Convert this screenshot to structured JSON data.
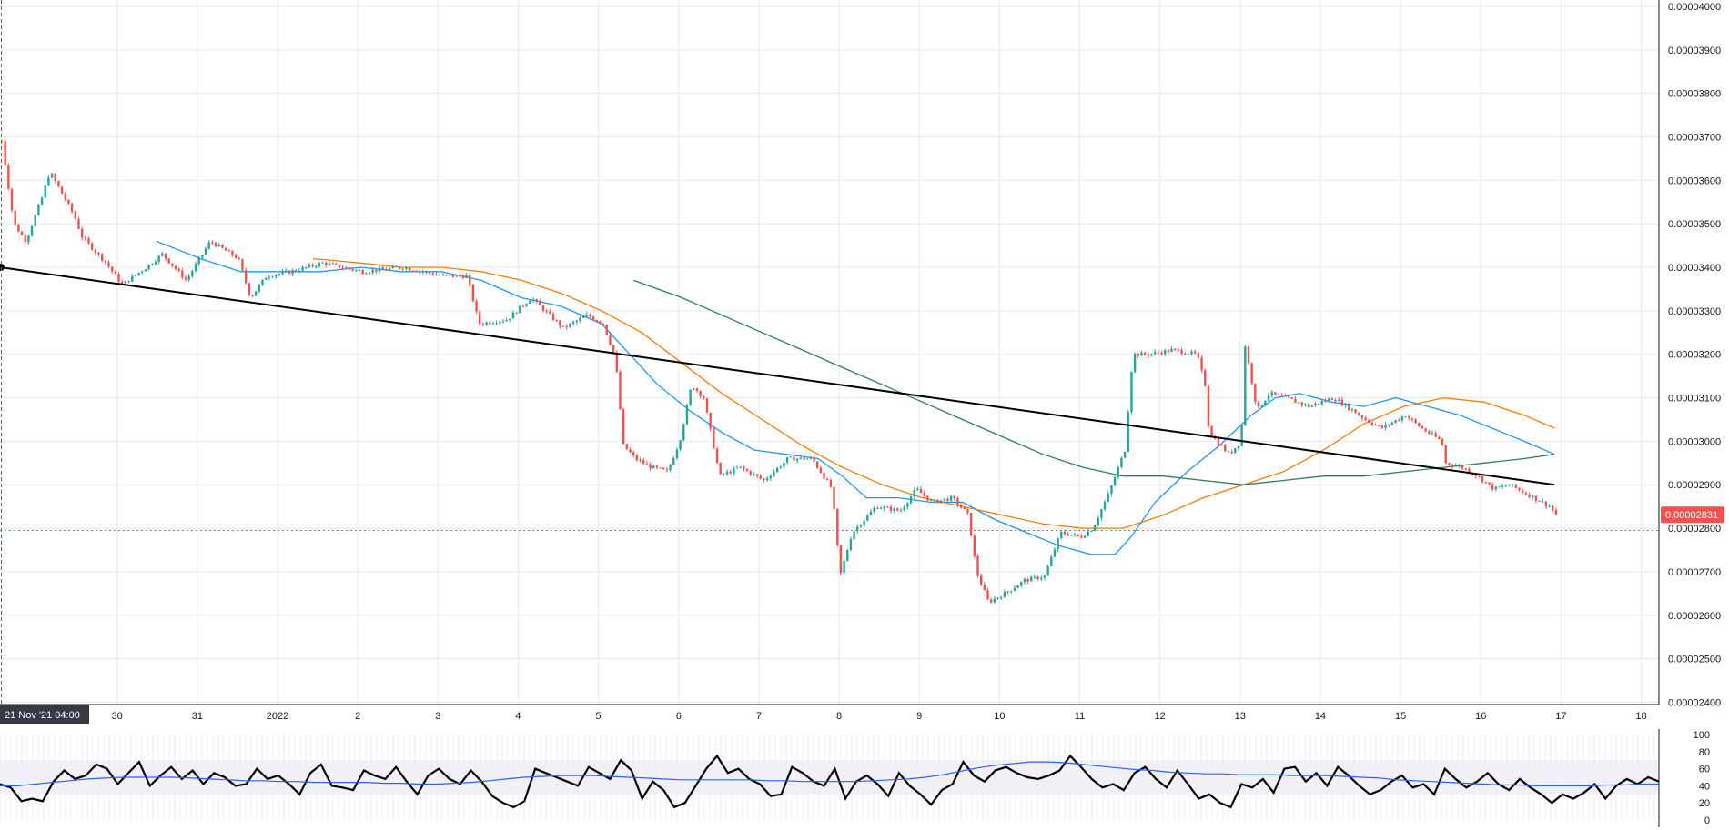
{
  "chart_data": {
    "type": "candlestick",
    "price_axis": {
      "range": [
        2.38e-05,
        4e-05
      ],
      "tick_labels": [
        "0.00004000",
        "0.00003900",
        "0.00003800",
        "0.00003700",
        "0.00003600",
        "0.00003500",
        "0.00003400",
        "0.00003300",
        "0.00003200",
        "0.00003100",
        "0.00003000",
        "0.00002900",
        "0.00002800",
        "0.00002700",
        "0.00002600",
        "0.00002500",
        "0.00002400"
      ]
    },
    "time_axis": {
      "tick_labels": [
        "30",
        "31",
        "2022",
        "2",
        "3",
        "4",
        "5",
        "6",
        "7",
        "8",
        "9",
        "10",
        "11",
        "12",
        "13",
        "14",
        "15",
        "16",
        "17",
        "18"
      ],
      "crosshair_label": "21 Nov '21   04:00"
    },
    "last_price": {
      "label": "0.00002831",
      "value": 2.831e-05
    },
    "horizontal_line": {
      "value": 2.795e-05,
      "style": "dotted",
      "color": "#ef5350"
    },
    "trendline": {
      "start": {
        "day": 0,
        "price": 3.4e-05
      },
      "end": {
        "day": 19.38,
        "price": 2.9e-05
      },
      "color": "#000000"
    },
    "candle_colors": {
      "up": "#26a69a",
      "down": "#ef5350"
    },
    "price_path": [
      [
        0.0,
        3.69e-05
      ],
      [
        0.15,
        3.5e-05
      ],
      [
        0.3,
        3.46e-05
      ],
      [
        0.5,
        3.56e-05
      ],
      [
        0.6,
        3.62e-05
      ],
      [
        0.9,
        3.52e-05
      ],
      [
        1.0,
        3.47e-05
      ],
      [
        1.3,
        3.41e-05
      ],
      [
        1.5,
        3.36e-05
      ],
      [
        1.8,
        3.4e-05
      ],
      [
        2.0,
        3.43e-05
      ],
      [
        2.3,
        3.37e-05
      ],
      [
        2.6,
        3.46e-05
      ],
      [
        2.95,
        3.42e-05
      ],
      [
        3.1,
        3.33e-05
      ],
      [
        3.3,
        3.38e-05
      ],
      [
        3.6,
        3.39e-05
      ],
      [
        4.0,
        3.41e-05
      ],
      [
        4.5,
        3.39e-05
      ],
      [
        5.0,
        3.4e-05
      ],
      [
        5.5,
        3.38e-05
      ],
      [
        5.8,
        3.38e-05
      ],
      [
        5.95,
        3.27e-05
      ],
      [
        6.3,
        3.28e-05
      ],
      [
        6.6,
        3.33e-05
      ],
      [
        7.0,
        3.26e-05
      ],
      [
        7.3,
        3.29e-05
      ],
      [
        7.5,
        3.27e-05
      ],
      [
        7.65,
        3.19e-05
      ],
      [
        7.75,
        2.99e-05
      ],
      [
        7.9,
        2.96e-05
      ],
      [
        8.1,
        2.94e-05
      ],
      [
        8.3,
        2.93e-05
      ],
      [
        8.45,
        3e-05
      ],
      [
        8.6,
        3.13e-05
      ],
      [
        8.75,
        3.1e-05
      ],
      [
        8.95,
        2.92e-05
      ],
      [
        9.2,
        2.94e-05
      ],
      [
        9.5,
        2.91e-05
      ],
      [
        9.8,
        2.96e-05
      ],
      [
        10.1,
        2.96e-05
      ],
      [
        10.35,
        2.89e-05
      ],
      [
        10.45,
        2.69e-05
      ],
      [
        10.6,
        2.79e-05
      ],
      [
        10.9,
        2.85e-05
      ],
      [
        11.2,
        2.84e-05
      ],
      [
        11.4,
        2.89e-05
      ],
      [
        11.6,
        2.86e-05
      ],
      [
        11.85,
        2.87e-05
      ],
      [
        12.05,
        2.83e-05
      ],
      [
        12.15,
        2.7e-05
      ],
      [
        12.3,
        2.63e-05
      ],
      [
        12.5,
        2.65e-05
      ],
      [
        12.75,
        2.68e-05
      ],
      [
        13.0,
        2.69e-05
      ],
      [
        13.2,
        2.79e-05
      ],
      [
        13.45,
        2.78e-05
      ],
      [
        13.6,
        2.8e-05
      ],
      [
        13.8,
        2.88e-05
      ],
      [
        14.0,
        2.98e-05
      ],
      [
        14.1,
        3.2e-05
      ],
      [
        14.3,
        3.2e-05
      ],
      [
        14.6,
        3.21e-05
      ],
      [
        14.9,
        3.2e-05
      ],
      [
        15.0,
        3.13e-05
      ],
      [
        15.05,
        3.02e-05
      ],
      [
        15.3,
        2.97e-05
      ],
      [
        15.45,
        3e-05
      ],
      [
        15.5,
        3.22e-05
      ],
      [
        15.65,
        3.07e-05
      ],
      [
        15.8,
        3.11e-05
      ],
      [
        16.0,
        3.1e-05
      ],
      [
        16.3,
        3.08e-05
      ],
      [
        16.6,
        3.1e-05
      ],
      [
        16.85,
        3.07e-05
      ],
      [
        17.0,
        3.05e-05
      ],
      [
        17.2,
        3.03e-05
      ],
      [
        17.5,
        3.06e-05
      ],
      [
        17.7,
        3.03e-05
      ],
      [
        17.95,
        3e-05
      ],
      [
        18.0,
        2.95e-05
      ],
      [
        18.2,
        2.94e-05
      ],
      [
        18.4,
        2.92e-05
      ],
      [
        18.6,
        2.89e-05
      ],
      [
        18.8,
        2.9e-05
      ],
      [
        19.0,
        2.88e-05
      ],
      [
        19.3,
        2.85e-05
      ],
      [
        19.38,
        2.83e-05
      ]
    ],
    "series": [
      {
        "color": "#2196f3",
        "points": [
          [
            1.95,
            3.46e-05
          ],
          [
            2.5,
            3.42e-05
          ],
          [
            3.0,
            3.39e-05
          ],
          [
            3.5,
            3.39e-05
          ],
          [
            4.0,
            3.39e-05
          ],
          [
            4.5,
            3.4e-05
          ],
          [
            5.0,
            3.39e-05
          ],
          [
            5.5,
            3.39e-05
          ],
          [
            6.0,
            3.37e-05
          ],
          [
            6.5,
            3.33e-05
          ],
          [
            7.0,
            3.31e-05
          ],
          [
            7.5,
            3.27e-05
          ],
          [
            7.8,
            3.21e-05
          ],
          [
            8.2,
            3.13e-05
          ],
          [
            8.6,
            3.07e-05
          ],
          [
            9.0,
            3.02e-05
          ],
          [
            9.4,
            2.98e-05
          ],
          [
            9.8,
            2.97e-05
          ],
          [
            10.2,
            2.96e-05
          ],
          [
            10.5,
            2.92e-05
          ],
          [
            10.8,
            2.87e-05
          ],
          [
            11.2,
            2.87e-05
          ],
          [
            11.6,
            2.86e-05
          ],
          [
            12.0,
            2.86e-05
          ],
          [
            12.4,
            2.82e-05
          ],
          [
            12.8,
            2.79e-05
          ],
          [
            13.2,
            2.76e-05
          ],
          [
            13.6,
            2.74e-05
          ],
          [
            13.9,
            2.74e-05
          ],
          [
            14.1,
            2.78e-05
          ],
          [
            14.4,
            2.86e-05
          ],
          [
            14.8,
            2.93e-05
          ],
          [
            15.2,
            2.99e-05
          ],
          [
            15.6,
            3.06e-05
          ],
          [
            15.9,
            3.1e-05
          ],
          [
            16.2,
            3.11e-05
          ],
          [
            16.6,
            3.09e-05
          ],
          [
            17.0,
            3.08e-05
          ],
          [
            17.4,
            3.1e-05
          ],
          [
            17.8,
            3.08e-05
          ],
          [
            18.2,
            3.06e-05
          ],
          [
            18.6,
            3.03e-05
          ],
          [
            19.0,
            3e-05
          ],
          [
            19.38,
            2.97e-05
          ]
        ]
      },
      {
        "color": "#f57c00",
        "points": [
          [
            3.9,
            3.42e-05
          ],
          [
            4.5,
            3.41e-05
          ],
          [
            5.0,
            3.4e-05
          ],
          [
            5.5,
            3.4e-05
          ],
          [
            6.0,
            3.39e-05
          ],
          [
            6.5,
            3.37e-05
          ],
          [
            7.0,
            3.34e-05
          ],
          [
            7.5,
            3.3e-05
          ],
          [
            8.0,
            3.25e-05
          ],
          [
            8.5,
            3.18e-05
          ],
          [
            9.0,
            3.11e-05
          ],
          [
            9.5,
            3.05e-05
          ],
          [
            10.0,
            2.99e-05
          ],
          [
            10.5,
            2.94e-05
          ],
          [
            11.0,
            2.9e-05
          ],
          [
            11.5,
            2.87e-05
          ],
          [
            12.0,
            2.85e-05
          ],
          [
            12.5,
            2.83e-05
          ],
          [
            13.0,
            2.81e-05
          ],
          [
            13.5,
            2.8e-05
          ],
          [
            14.0,
            2.8e-05
          ],
          [
            14.5,
            2.83e-05
          ],
          [
            15.0,
            2.87e-05
          ],
          [
            15.5,
            2.9e-05
          ],
          [
            16.0,
            2.93e-05
          ],
          [
            16.5,
            2.98e-05
          ],
          [
            17.0,
            3.04e-05
          ],
          [
            17.5,
            3.08e-05
          ],
          [
            18.0,
            3.1e-05
          ],
          [
            18.5,
            3.09e-05
          ],
          [
            19.0,
            3.06e-05
          ],
          [
            19.38,
            3.03e-05
          ]
        ]
      },
      {
        "color": "#2e7d5b",
        "points": [
          [
            7.9,
            3.37e-05
          ],
          [
            8.5,
            3.33e-05
          ],
          [
            9.0,
            3.29e-05
          ],
          [
            9.5,
            3.25e-05
          ],
          [
            10.0,
            3.21e-05
          ],
          [
            10.5,
            3.17e-05
          ],
          [
            11.0,
            3.13e-05
          ],
          [
            11.5,
            3.09e-05
          ],
          [
            12.0,
            3.05e-05
          ],
          [
            12.5,
            3.01e-05
          ],
          [
            13.0,
            2.97e-05
          ],
          [
            13.5,
            2.94e-05
          ],
          [
            14.0,
            2.92e-05
          ],
          [
            14.5,
            2.92e-05
          ],
          [
            15.0,
            2.91e-05
          ],
          [
            15.5,
            2.9e-05
          ],
          [
            16.0,
            2.91e-05
          ],
          [
            16.5,
            2.92e-05
          ],
          [
            17.0,
            2.92e-05
          ],
          [
            17.5,
            2.93e-05
          ],
          [
            18.0,
            2.94e-05
          ],
          [
            18.5,
            2.95e-05
          ],
          [
            19.0,
            2.96e-05
          ],
          [
            19.38,
            2.97e-05
          ]
        ]
      }
    ],
    "oscillator": {
      "range": [
        0,
        100
      ],
      "tick_labels": [
        "100",
        "80",
        "60",
        "40",
        "20",
        "0"
      ],
      "series": [
        {
          "color": "#000000",
          "values": [
            42,
            38,
            22,
            25,
            22,
            45,
            58,
            48,
            52,
            65,
            60,
            42,
            55,
            68,
            40,
            52,
            62,
            48,
            58,
            42,
            55,
            50,
            40,
            42,
            60,
            48,
            52,
            42,
            30,
            55,
            65,
            40,
            38,
            35,
            58,
            52,
            48,
            62,
            45,
            30,
            52,
            60,
            48,
            42,
            58,
            45,
            28,
            20,
            15,
            22,
            60,
            55,
            50,
            45,
            40,
            62,
            55,
            48,
            70,
            58,
            25,
            45,
            35,
            15,
            20,
            40,
            60,
            75,
            55,
            60,
            48,
            42,
            28,
            30,
            62,
            55,
            45,
            40,
            60,
            25,
            45,
            52,
            42,
            28,
            55,
            40,
            30,
            18,
            35,
            42,
            68,
            52,
            45,
            58,
            62,
            55,
            50,
            48,
            52,
            58,
            75,
            62,
            48,
            38,
            42,
            35,
            55,
            62,
            48,
            38,
            58,
            42,
            25,
            30,
            20,
            15,
            42,
            38,
            48,
            32,
            60,
            62,
            45,
            55,
            40,
            62,
            52,
            40,
            30,
            35,
            45,
            52,
            38,
            42,
            30,
            60,
            48,
            38,
            45,
            55,
            42,
            35,
            48,
            38,
            30,
            20,
            30,
            25,
            32,
            42,
            25,
            40,
            48,
            42,
            50,
            45
          ]
        },
        {
          "color": "#2962ff",
          "values": [
            40,
            40,
            42,
            44,
            46,
            48,
            49,
            50,
            50,
            50,
            50,
            49,
            48,
            47,
            46,
            46,
            45,
            45,
            44,
            44,
            44,
            44,
            43,
            43,
            42,
            42,
            43,
            44,
            46,
            48,
            50,
            51,
            52,
            52,
            52,
            51,
            50,
            49,
            48,
            47,
            47,
            47,
            47,
            47,
            46,
            46,
            45,
            45,
            45,
            45,
            46,
            47,
            48,
            50,
            53,
            57,
            61,
            64,
            66,
            68,
            68,
            67,
            65,
            63,
            61,
            59,
            58,
            56,
            55,
            54,
            54,
            53,
            53,
            53,
            52,
            52,
            52,
            51,
            50,
            49,
            47,
            46,
            45,
            44,
            43,
            42,
            41,
            41,
            40,
            40,
            40,
            40,
            41,
            41,
            42,
            42
          ]
        }
      ]
    }
  }
}
